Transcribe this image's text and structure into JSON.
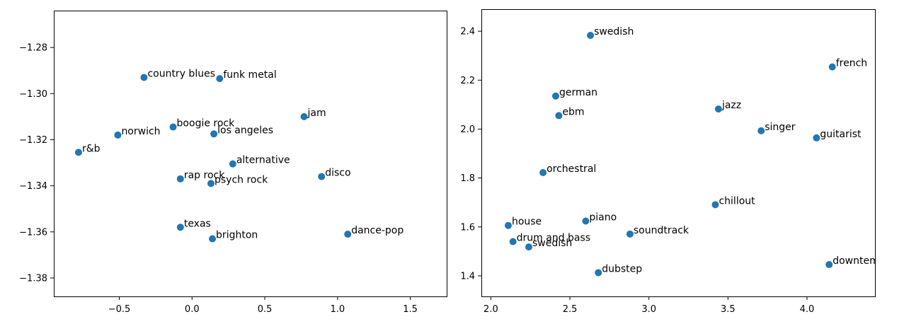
{
  "chart_data": [
    {
      "type": "scatter",
      "title": "",
      "xlabel": "",
      "ylabel": "",
      "xlim": [
        -0.95,
        1.75
      ],
      "ylim": [
        -1.388,
        -1.264
      ],
      "xticks": [
        -0.5,
        0.0,
        0.5,
        1.0,
        1.5
      ],
      "yticks": [
        -1.28,
        -1.3,
        -1.32,
        -1.34,
        -1.36,
        -1.38
      ],
      "xtick_labels": [
        "−0.5",
        "0.0",
        "0.5",
        "1.0",
        "1.5"
      ],
      "ytick_labels": [
        "−1.28",
        "−1.30",
        "−1.32",
        "−1.34",
        "−1.36",
        "−1.38"
      ],
      "grid": false,
      "marker_color": "#1f77b4",
      "points": [
        {
          "label": "country blues",
          "x": -0.33,
          "y": -1.293
        },
        {
          "label": "funk metal",
          "x": 0.19,
          "y": -1.2935
        },
        {
          "label": "jam",
          "x": 0.77,
          "y": -1.31
        },
        {
          "label": "boogie rock",
          "x": -0.13,
          "y": -1.3145
        },
        {
          "label": "norwich",
          "x": -0.51,
          "y": -1.318
        },
        {
          "label": "los angeles",
          "x": 0.15,
          "y": -1.3175
        },
        {
          "label": "r&b",
          "x": -0.78,
          "y": -1.3255
        },
        {
          "label": "alternative",
          "x": 0.28,
          "y": -1.3305
        },
        {
          "label": "disco",
          "x": 0.89,
          "y": -1.336
        },
        {
          "label": "rap rock",
          "x": -0.08,
          "y": -1.337
        },
        {
          "label": "psych rock",
          "x": 0.13,
          "y": -1.339
        },
        {
          "label": "texas",
          "x": -0.08,
          "y": -1.358
        },
        {
          "label": "dance-pop",
          "x": 1.07,
          "y": -1.361
        },
        {
          "label": "brighton",
          "x": 0.14,
          "y": -1.363
        }
      ]
    },
    {
      "type": "scatter",
      "title": "",
      "xlabel": "",
      "ylabel": "",
      "xlim": [
        1.94,
        4.43
      ],
      "ylim": [
        1.316,
        2.49
      ],
      "xticks": [
        2.0,
        2.5,
        3.0,
        3.5,
        4.0
      ],
      "yticks": [
        1.4,
        1.6,
        1.8,
        2.0,
        2.2,
        2.4
      ],
      "xtick_labels": [
        "2.0",
        "2.5",
        "3.0",
        "3.5",
        "4.0"
      ],
      "ytick_labels": [
        "1.4",
        "1.6",
        "1.8",
        "2.0",
        "2.2",
        "2.4"
      ],
      "grid": false,
      "marker_color": "#1f77b4",
      "points": [
        {
          "label": "swedish",
          "x": 2.63,
          "y": 2.383
        },
        {
          "label": "french",
          "x": 4.16,
          "y": 2.254
        },
        {
          "label": "german",
          "x": 2.41,
          "y": 2.135
        },
        {
          "label": "jazz",
          "x": 3.44,
          "y": 2.082
        },
        {
          "label": "ebm",
          "x": 2.43,
          "y": 2.055
        },
        {
          "label": "singer",
          "x": 3.71,
          "y": 1.993
        },
        {
          "label": "guitarist",
          "x": 4.06,
          "y": 1.964
        },
        {
          "label": "orchestral",
          "x": 2.33,
          "y": 1.822
        },
        {
          "label": "chillout",
          "x": 3.42,
          "y": 1.691
        },
        {
          "label": "piano",
          "x": 2.6,
          "y": 1.624
        },
        {
          "label": "house",
          "x": 2.11,
          "y": 1.606
        },
        {
          "label": "soundtrack",
          "x": 2.88,
          "y": 1.571
        },
        {
          "label": "drum and bass",
          "x": 2.14,
          "y": 1.54
        },
        {
          "label": "swedish",
          "x": 2.24,
          "y": 1.518
        },
        {
          "label": "downtempo",
          "x": 4.14,
          "y": 1.446
        },
        {
          "label": "dubstep",
          "x": 2.68,
          "y": 1.413
        }
      ]
    }
  ]
}
